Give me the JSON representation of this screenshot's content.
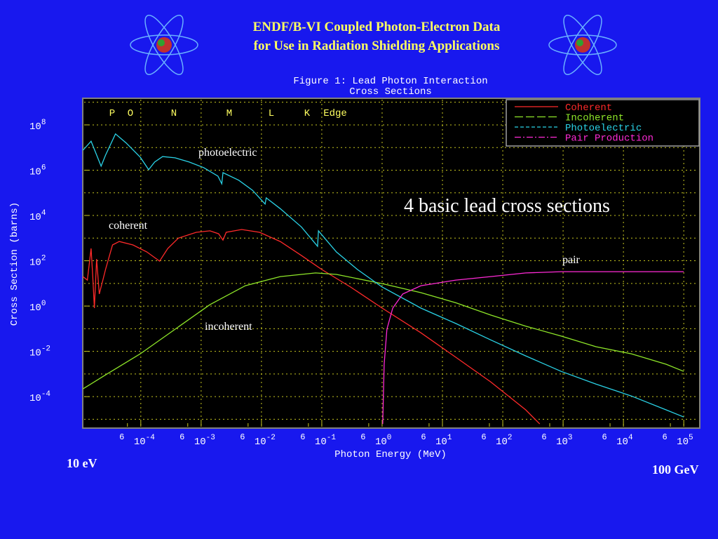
{
  "slide": {
    "title": [
      "ENDF/B-VI Coupled Photon-Electron Data",
      "for Use in Radiation Shielding Applications"
    ],
    "left_note": "10 eV",
    "right_note": "100 GeV"
  },
  "chart_data": {
    "type": "line",
    "caption": [
      "Figure 1: Lead Photon Interaction",
      "Cross Sections"
    ],
    "xlabel": "Photon Energy (MeV)",
    "ylabel": "Cross Section (barns)",
    "xscale": "log",
    "yscale": "log",
    "grid": true,
    "legend": "upper right",
    "xlim": [
      1.15e-05,
      170000
    ],
    "ylim": [
      4.7e-06,
      1300000000
    ],
    "xticks": [
      {
        "value": 0.0001,
        "label": "10",
        "exp": "-4"
      },
      {
        "value": 0.001,
        "label": "10",
        "exp": "-3"
      },
      {
        "value": 0.01,
        "label": "10",
        "exp": "-2"
      },
      {
        "value": 0.1,
        "label": "10",
        "exp": "-1"
      },
      {
        "value": 1,
        "label": "10",
        "exp": "0"
      },
      {
        "value": 10,
        "label": "10",
        "exp": "1"
      },
      {
        "value": 100,
        "label": "10",
        "exp": "2"
      },
      {
        "value": 1000,
        "label": "10",
        "exp": "3"
      },
      {
        "value": 10000,
        "label": "10",
        "exp": "4"
      },
      {
        "value": 100000,
        "label": "10",
        "exp": "5"
      }
    ],
    "minor_xticks": [
      {
        "value": 6e-05,
        "label": "6"
      },
      {
        "value": 0.0006,
        "label": "6"
      },
      {
        "value": 0.006,
        "label": "6"
      },
      {
        "value": 0.06,
        "label": "6"
      },
      {
        "value": 0.6,
        "label": "6"
      },
      {
        "value": 6,
        "label": "6"
      },
      {
        "value": 60,
        "label": "6"
      },
      {
        "value": 600,
        "label": "6"
      },
      {
        "value": 6000,
        "label": "6"
      },
      {
        "value": 60000,
        "label": "6"
      }
    ],
    "yticks": [
      {
        "value": 0.0001,
        "label": "10",
        "exp": "-4"
      },
      {
        "value": 0.01,
        "label": "10",
        "exp": "-2"
      },
      {
        "value": 1,
        "label": "10",
        "exp": "0"
      },
      {
        "value": 100,
        "label": "10",
        "exp": "2"
      },
      {
        "value": 10000,
        "label": "10",
        "exp": "4"
      },
      {
        "value": 1000000,
        "label": "10",
        "exp": "6"
      },
      {
        "value": 100000000,
        "label": "10",
        "exp": "8"
      }
    ],
    "minor_yticks": [
      1e-05,
      0.001,
      0.1,
      10,
      1000,
      100000,
      10000000,
      1000000000
    ],
    "edge_labels": [
      "P",
      "O",
      "N",
      "M",
      "L",
      "K",
      "Edge"
    ],
    "annotations": [
      "photoelectric",
      "coherent",
      "incoherent",
      "pair",
      "4 basic lead cross sections"
    ],
    "series": [
      {
        "name": "Coherent",
        "color": "#ff2a2a",
        "style": "solid",
        "x": [
          1.1e-05,
          1.3e-05,
          1.5e-05,
          1.6e-05,
          1.7e-05,
          1.85e-05,
          2.05e-05,
          2.35e-05,
          2.6e-05,
          3.4e-05,
          4.4e-05,
          7.4e-05,
          0.000126,
          0.000205,
          0.00028,
          0.00042,
          0.00083,
          0.0014,
          0.00195,
          0.0023,
          0.0026,
          0.0047,
          0.0093,
          0.0205,
          0.046,
          0.1,
          0.3,
          1,
          4.4,
          16.6,
          63,
          240,
          410
        ],
        "values": [
          20,
          14,
          350,
          20,
          0.81,
          120,
          3.4,
          14,
          41,
          500,
          710,
          500,
          245,
          96,
          350,
          1000,
          1800,
          2100,
          1550,
          820,
          1800,
          2400,
          1800,
          710,
          170,
          41,
          6.9,
          0.81,
          0.066,
          0.0055,
          0.00045,
          2.6e-05,
          6.2e-06
        ]
      },
      {
        "name": "Incoherent",
        "color": "#8ee628",
        "style": "longdash",
        "x": [
          1.1e-05,
          2.6e-05,
          9.8e-05,
          0.00037,
          0.0014,
          0.0054,
          0.0205,
          0.079,
          0.175,
          1,
          4.4,
          16.6,
          63,
          240,
          930,
          3500,
          13500,
          51000,
          100000
        ],
        "values": [
          0.00022,
          0.00091,
          0.0078,
          0.095,
          1.15,
          7.9,
          20,
          29,
          25,
          9.8,
          3.9,
          1.4,
          0.4,
          0.13,
          0.047,
          0.016,
          0.0078,
          0.0027,
          0.0013
        ]
      },
      {
        "name": "Photoelectric",
        "color": "#2ad2e6",
        "style": "dash",
        "x": [
          1.1e-05,
          1.5e-05,
          2.2e-05,
          2.6e-05,
          3.8e-05,
          5.7e-05,
          9.8e-05,
          0.000135,
          0.00017,
          0.00023,
          0.00037,
          0.00063,
          0.0011,
          0.0019,
          0.0022,
          0.0023,
          0.0042,
          0.0071,
          0.0115,
          0.012,
          0.0205,
          0.046,
          0.085,
          0.088,
          0.175,
          0.39,
          1,
          4.4,
          16.6,
          63,
          240,
          930,
          3500,
          13500,
          51000,
          100000
        ],
        "values": [
          7600000,
          19000000,
          1500000,
          4600000,
          40000000,
          16000000,
          3700000,
          1050000,
          2300000,
          4000000,
          3500000,
          2300000,
          1300000,
          550000,
          250000,
          780000,
          360000,
          130000,
          32000,
          60000,
          20000,
          3100,
          435,
          2100,
          245,
          41,
          6.9,
          0.81,
          0.17,
          0.032,
          0.0063,
          0.0013,
          0.00036,
          0.000107,
          2.6e-05,
          1.26e-05
        ]
      },
      {
        "name": "Pair Production",
        "color": "#ff2ad6",
        "style": "dashdot",
        "x": [
          1.022,
          1.08,
          1.2,
          1.5,
          2.2,
          4.4,
          16.6,
          63,
          240,
          930,
          100000
        ],
        "values": [
          6.2e-06,
          0.0027,
          0.095,
          0.81,
          3.4,
          7.9,
          14,
          20,
          29,
          33,
          33
        ]
      }
    ]
  }
}
